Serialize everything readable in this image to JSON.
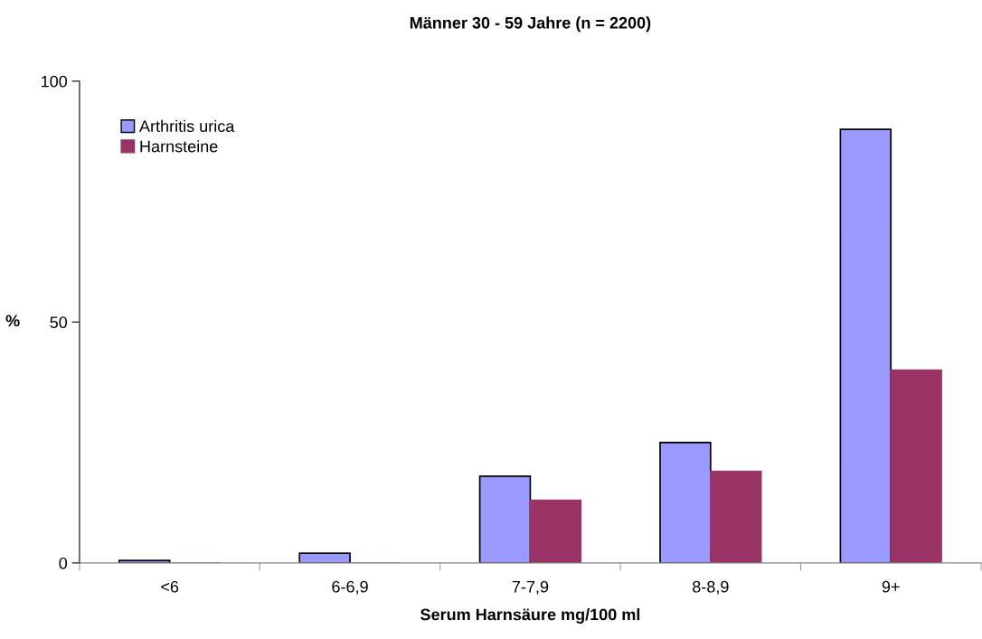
{
  "chart_data": {
    "type": "bar",
    "title": "Männer 30 - 59 Jahre (n = 2200)",
    "xlabel": "Serum Harnsäure mg/100 ml",
    "ylabel": "%",
    "categories": [
      "<6",
      "6-6,9",
      "7-7,9",
      "8-8,9",
      "9+"
    ],
    "series": [
      {
        "name": "Arthritis urica",
        "color": "#9999ff",
        "values": [
          0.5,
          2,
          18,
          25,
          90
        ]
      },
      {
        "name": "Harnsteine",
        "color": "#993366",
        "values": [
          0,
          0,
          13,
          19,
          40
        ]
      }
    ],
    "ylim": [
      0,
      100
    ],
    "yticks": [
      0,
      50,
      100
    ],
    "grid": false,
    "legend": "top left"
  }
}
